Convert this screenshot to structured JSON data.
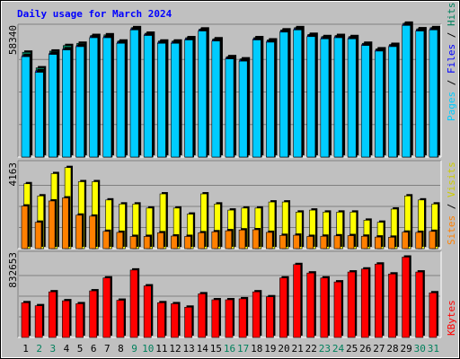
{
  "chart_data": [
    {
      "type": "bar",
      "title": "Daily usage for March 2024",
      "categories": [
        "1",
        "2",
        "3",
        "4",
        "5",
        "6",
        "7",
        "8",
        "9",
        "10",
        "11",
        "12",
        "13",
        "14",
        "15",
        "16",
        "17",
        "18",
        "19",
        "20",
        "21",
        "22",
        "23",
        "24",
        "25",
        "26",
        "27",
        "28",
        "29",
        "30",
        "31"
      ],
      "weekend_days": [
        "2",
        "3",
        "9",
        "10",
        "16",
        "17",
        "23",
        "24",
        "30",
        "31"
      ],
      "ymax_label": "58340",
      "ymax": 58340,
      "ylabel_parts": [
        "Pages",
        "Files",
        "Hits"
      ],
      "series": [
        {
          "name": "Hits",
          "color": "#00805c",
          "values": [
            47000,
            40000,
            47500,
            50000,
            51000,
            54500,
            54800,
            52000,
            58000,
            55500,
            52000,
            52000,
            53500,
            57400,
            53000,
            45000,
            44000,
            53500,
            52500,
            57000,
            58000,
            55000,
            54000,
            54500,
            54000,
            51000,
            48500,
            50500,
            60000,
            57500,
            58000
          ]
        },
        {
          "name": "Files",
          "color": "#0000ff",
          "values": [
            45500,
            38700,
            46500,
            48500,
            50000,
            54000,
            54000,
            51500,
            57500,
            55000,
            51500,
            51500,
            53000,
            57000,
            52500,
            44500,
            43500,
            53000,
            52000,
            56500,
            57500,
            54500,
            53500,
            54000,
            53500,
            50500,
            48000,
            50000,
            59500,
            57000,
            57500
          ]
        },
        {
          "name": "Pages",
          "color": "#00ccff",
          "values": [
            45000,
            38000,
            46000,
            48000,
            49500,
            53500,
            53500,
            51000,
            57000,
            54500,
            51000,
            51000,
            52500,
            56500,
            52000,
            44000,
            43000,
            52500,
            51500,
            56000,
            57000,
            54000,
            53000,
            53500,
            53000,
            50000,
            47500,
            49500,
            59000,
            56500,
            57000
          ]
        }
      ]
    },
    {
      "type": "bar",
      "ymax_label": "4163",
      "ymax": 4163,
      "ylabel_parts": [
        "Sites",
        "Visits"
      ],
      "series": [
        {
          "name": "Visits",
          "color": "#ffff00",
          "values": [
            3200,
            2600,
            3700,
            4000,
            3300,
            3300,
            2400,
            2200,
            2200,
            2000,
            2700,
            2000,
            1700,
            2700,
            2200,
            1900,
            2000,
            2000,
            2300,
            2300,
            1800,
            1900,
            1800,
            1800,
            1800,
            1400,
            1300,
            1950,
            2600,
            2400,
            2200
          ]
        },
        {
          "name": "Sites",
          "color": "#ff8000",
          "values": [
            2100,
            1300,
            2350,
            2500,
            1650,
            1600,
            850,
            800,
            600,
            600,
            780,
            620,
            600,
            780,
            830,
            880,
            920,
            930,
            800,
            650,
            660,
            600,
            610,
            630,
            640,
            610,
            570,
            560,
            810,
            800,
            850
          ]
        }
      ]
    },
    {
      "type": "bar",
      "ymax_label": "832653",
      "ymax": 832653,
      "ylabel_parts": [
        "KBytes"
      ],
      "series": [
        {
          "name": "KBytes",
          "color": "#ff0000",
          "values": [
            350000,
            320000,
            460000,
            370000,
            340000,
            470000,
            600000,
            375000,
            680000,
            520000,
            350000,
            340000,
            305000,
            440000,
            380000,
            380000,
            390000,
            460000,
            410000,
            600000,
            735000,
            650000,
            600000,
            560000,
            660000,
            690000,
            740000,
            640000,
            810000,
            660000,
            450000
          ]
        }
      ]
    }
  ]
}
